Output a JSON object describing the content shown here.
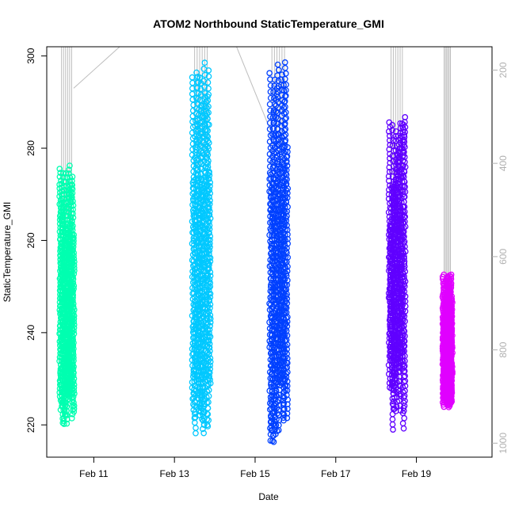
{
  "chart_data": {
    "type": "scatter",
    "title": "ATOM2 Northbound StaticTemperature_GMI",
    "xlabel": "Date",
    "ylabel": "StaticTemperature_GMI",
    "x_ticks": [
      "Feb 11",
      "Feb 13",
      "Feb 15",
      "Feb 17",
      "Feb 19"
    ],
    "x_tick_dates": [
      "2017-02-11",
      "2017-02-13",
      "2017-02-15",
      "2017-02-17",
      "2017-02-19"
    ],
    "x_range": [
      "2017-02-09 20:00",
      "2017-02-20 21:00"
    ],
    "y_ticks": [
      220,
      240,
      260,
      280,
      300
    ],
    "ylim": [
      213,
      302
    ],
    "y2_ticks": [
      200,
      400,
      600,
      800,
      1000
    ],
    "y2lim": [
      1030,
      150
    ],
    "y2_color": "#b0b0b0",
    "marker": "open-circle",
    "grid": false,
    "series": [
      {
        "color": "#00ffb0",
        "x_range": [
          "2017-02-10 04:00",
          "2017-02-10 12:00"
        ],
        "y_range": [
          220,
          277
        ],
        "dense_low": 228
      },
      {
        "color": "#00c8ff",
        "x_range": [
          "2017-02-13 11:00",
          "2017-02-13 21:00"
        ],
        "y_range": [
          218,
          299
        ],
        "dense_low": 231
      },
      {
        "color": "#0040ff",
        "x_range": [
          "2017-02-15 09:00",
          "2017-02-15 19:00"
        ],
        "y_range": [
          215,
          299
        ],
        "dense_low": 232
      },
      {
        "color": "#6000ff",
        "x_range": [
          "2017-02-18 08:00",
          "2017-02-18 17:00"
        ],
        "y_range": [
          217,
          287
        ],
        "dense_low": 236
      },
      {
        "color": "#e000ff",
        "x_range": [
          "2017-02-19 16:00",
          "2017-02-19 21:00"
        ],
        "y_range": [
          223,
          253
        ],
        "dense_low": 226
      }
    ]
  }
}
